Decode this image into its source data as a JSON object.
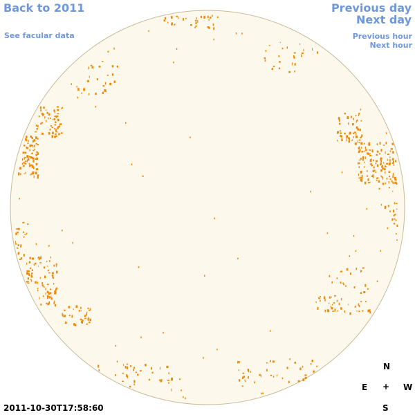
{
  "nav": {
    "back_label": "Back to 2011",
    "facular_label": "See facular data",
    "previous_day_label": "Previous day",
    "next_day_label": "Next day",
    "previous_hour_label": "Previous hour",
    "next_hour_label": "Next hour"
  },
  "compass": {
    "north": "N",
    "east": "E",
    "west": "W",
    "south": "S",
    "center": "+"
  },
  "timestamp": "2011-10-30T17:58:60",
  "colors": {
    "link": "#6f97dc",
    "disc_fill": "#fdf8ec",
    "disc_edge": "#c9bb99",
    "facula": "#ec8a0a"
  }
}
